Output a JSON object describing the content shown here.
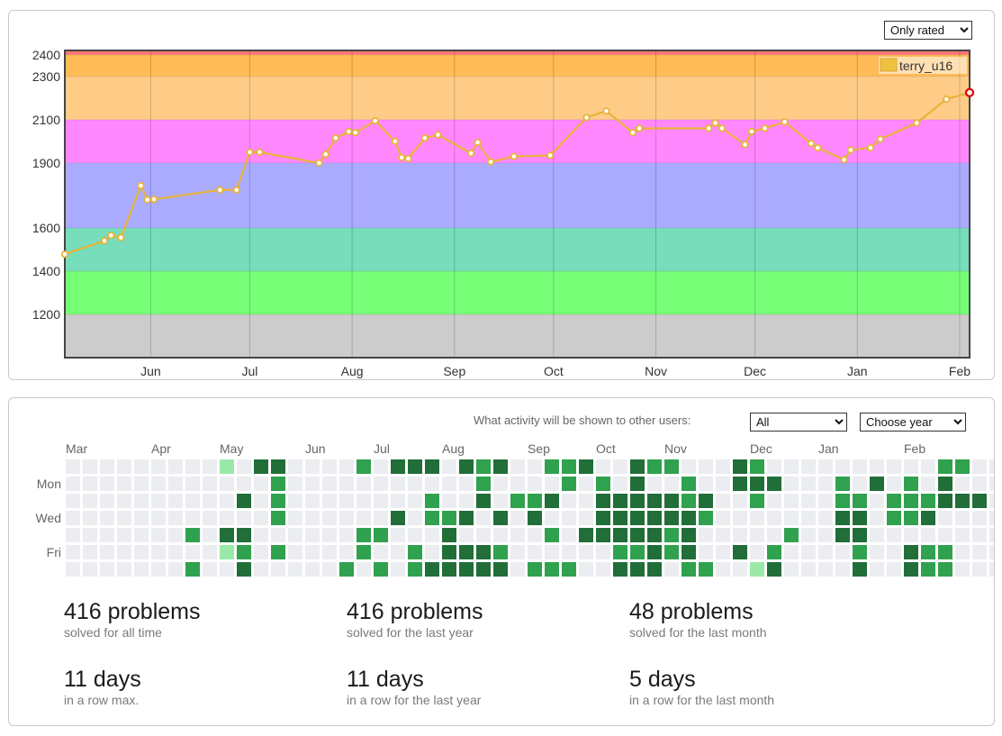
{
  "rating": {
    "filter": {
      "selected": "Only rated",
      "options": [
        "Only rated"
      ]
    },
    "chart_data": {
      "type": "line",
      "legend": {
        "name": "terry_u16",
        "color": "#f0c040",
        "position": "top-right"
      },
      "y_ticks": [
        2400,
        2300,
        2100,
        1900,
        1600,
        1400,
        1200
      ],
      "x_ticks": [
        "Jun",
        "Jul",
        "Aug",
        "Sep",
        "Oct",
        "Nov",
        "Dec",
        "Jan",
        "Feb"
      ],
      "bands": [
        {
          "from": 1000,
          "to": 1200,
          "color": "#cccccc"
        },
        {
          "from": 1200,
          "to": 1400,
          "color": "#77ff77"
        },
        {
          "from": 1400,
          "to": 1600,
          "color": "#77ddbb"
        },
        {
          "from": 1600,
          "to": 1900,
          "color": "#aaaaff"
        },
        {
          "from": 1900,
          "to": 2100,
          "color": "#ff88ff"
        },
        {
          "from": 2100,
          "to": 2300,
          "color": "#ffcc88"
        },
        {
          "from": 2300,
          "to": 2400,
          "color": "#ffbb55"
        },
        {
          "from": 2400,
          "to": 2500,
          "color": "#ff7777"
        }
      ],
      "ylim": [
        1000,
        2420
      ],
      "line_color": "#e8b33a",
      "series": [
        {
          "name": "terry_u16",
          "points": [
            {
              "date": "2020-05-06",
              "rating": 1478
            },
            {
              "date": "2020-05-18",
              "rating": 1540
            },
            {
              "date": "2020-05-20",
              "rating": 1565
            },
            {
              "date": "2020-05-23",
              "rating": 1555
            },
            {
              "date": "2020-05-29",
              "rating": 1795
            },
            {
              "date": "2020-05-31",
              "rating": 1730
            },
            {
              "date": "2020-06-02",
              "rating": 1732
            },
            {
              "date": "2020-06-22",
              "rating": 1775
            },
            {
              "date": "2020-06-27",
              "rating": 1775
            },
            {
              "date": "2020-07-01",
              "rating": 1950
            },
            {
              "date": "2020-07-04",
              "rating": 1950
            },
            {
              "date": "2020-07-22",
              "rating": 1900
            },
            {
              "date": "2020-07-24",
              "rating": 1940
            },
            {
              "date": "2020-07-27",
              "rating": 2015
            },
            {
              "date": "2020-07-31",
              "rating": 2045
            },
            {
              "date": "2020-08-02",
              "rating": 2040
            },
            {
              "date": "2020-08-08",
              "rating": 2095
            },
            {
              "date": "2020-08-14",
              "rating": 2000
            },
            {
              "date": "2020-08-16",
              "rating": 1925
            },
            {
              "date": "2020-08-18",
              "rating": 1920
            },
            {
              "date": "2020-08-23",
              "rating": 2015
            },
            {
              "date": "2020-08-27",
              "rating": 2030
            },
            {
              "date": "2020-09-06",
              "rating": 1945
            },
            {
              "date": "2020-09-08",
              "rating": 1995
            },
            {
              "date": "2020-09-12",
              "rating": 1905
            },
            {
              "date": "2020-09-19",
              "rating": 1930
            },
            {
              "date": "2020-09-30",
              "rating": 1935
            },
            {
              "date": "2020-10-11",
              "rating": 2110
            },
            {
              "date": "2020-10-17",
              "rating": 2140
            },
            {
              "date": "2020-10-25",
              "rating": 2040
            },
            {
              "date": "2020-10-27",
              "rating": 2060
            },
            {
              "date": "2020-11-17",
              "rating": 2060
            },
            {
              "date": "2020-11-19",
              "rating": 2085
            },
            {
              "date": "2020-11-21",
              "rating": 2060
            },
            {
              "date": "2020-11-28",
              "rating": 1985
            },
            {
              "date": "2020-11-30",
              "rating": 2045
            },
            {
              "date": "2020-12-04",
              "rating": 2060
            },
            {
              "date": "2020-12-10",
              "rating": 2090
            },
            {
              "date": "2020-12-18",
              "rating": 1990
            },
            {
              "date": "2020-12-20",
              "rating": 1970
            },
            {
              "date": "2020-12-28",
              "rating": 1915
            },
            {
              "date": "2020-12-30",
              "rating": 1960
            },
            {
              "date": "2021-01-05",
              "rating": 1970
            },
            {
              "date": "2021-01-08",
              "rating": 2010
            },
            {
              "date": "2021-01-19",
              "rating": 2085
            },
            {
              "date": "2021-01-28",
              "rating": 2195
            },
            {
              "date": "2021-02-04",
              "rating": 2225
            }
          ]
        }
      ]
    }
  },
  "activity": {
    "visibility_label": "What activity will be shown to other users:",
    "visibility_select": {
      "selected": "All"
    },
    "year_select": {
      "selected": "Choose year"
    },
    "month_labels": [
      "Mar",
      "Apr",
      "May",
      "Jun",
      "Jul",
      "Aug",
      "Sep",
      "Oct",
      "Nov",
      "Dec",
      "Jan",
      "Feb"
    ],
    "day_labels": [
      "Mon",
      "Wed",
      "Fri"
    ],
    "level_colors": [
      "#ebedf0",
      "#9be9a8",
      "#40c463",
      "#30a14e",
      "#216e39"
    ],
    "weeks": [
      [
        0,
        0,
        0,
        0,
        0,
        0,
        0
      ],
      [
        0,
        0,
        0,
        0,
        0,
        0,
        0
      ],
      [
        0,
        0,
        0,
        0,
        0,
        0,
        0
      ],
      [
        0,
        0,
        0,
        0,
        0,
        0,
        0
      ],
      [
        0,
        0,
        0,
        0,
        0,
        0,
        0
      ],
      [
        0,
        0,
        0,
        0,
        0,
        0,
        0
      ],
      [
        0,
        0,
        0,
        0,
        0,
        0,
        0
      ],
      [
        0,
        0,
        0,
        0,
        3,
        0,
        3
      ],
      [
        0,
        0,
        0,
        0,
        0,
        0,
        0
      ],
      [
        1,
        0,
        0,
        0,
        4,
        1,
        0
      ],
      [
        0,
        0,
        4,
        0,
        4,
        3,
        4
      ],
      [
        4,
        0,
        0,
        0,
        0,
        0,
        0
      ],
      [
        4,
        3,
        3,
        3,
        0,
        3,
        0
      ],
      [
        0,
        0,
        0,
        0,
        0,
        0,
        0
      ],
      [
        0,
        0,
        0,
        0,
        0,
        0,
        0
      ],
      [
        0,
        0,
        0,
        0,
        0,
        0,
        0
      ],
      [
        0,
        0,
        0,
        0,
        0,
        0,
        3
      ],
      [
        3,
        0,
        0,
        0,
        3,
        3,
        0
      ],
      [
        0,
        0,
        0,
        0,
        3,
        0,
        3
      ],
      [
        4,
        0,
        0,
        4,
        0,
        0,
        0
      ],
      [
        4,
        0,
        0,
        0,
        0,
        3,
        3
      ],
      [
        4,
        0,
        3,
        3,
        0,
        0,
        4
      ],
      [
        0,
        0,
        0,
        3,
        4,
        4,
        4
      ],
      [
        4,
        0,
        0,
        4,
        0,
        4,
        4
      ],
      [
        3,
        3,
        4,
        0,
        0,
        4,
        4
      ],
      [
        4,
        0,
        0,
        4,
        0,
        3,
        4
      ],
      [
        0,
        0,
        3,
        0,
        0,
        0,
        0
      ],
      [
        0,
        0,
        3,
        4,
        0,
        0,
        3
      ],
      [
        3,
        0,
        4,
        0,
        3,
        0,
        3
      ],
      [
        3,
        3,
        0,
        0,
        0,
        0,
        3
      ],
      [
        4,
        0,
        0,
        0,
        4,
        0,
        0
      ],
      [
        0,
        3,
        4,
        4,
        4,
        0,
        0
      ],
      [
        0,
        0,
        4,
        4,
        4,
        3,
        4
      ],
      [
        4,
        4,
        4,
        4,
        4,
        3,
        4
      ],
      [
        3,
        0,
        4,
        4,
        4,
        4,
        4
      ],
      [
        3,
        0,
        4,
        4,
        3,
        3,
        0
      ],
      [
        0,
        3,
        3,
        4,
        4,
        4,
        3
      ],
      [
        0,
        0,
        4,
        3,
        0,
        0,
        3
      ],
      [
        0,
        0,
        0,
        0,
        0,
        0,
        0
      ],
      [
        4,
        4,
        0,
        0,
        0,
        4,
        0
      ],
      [
        3,
        4,
        3,
        0,
        0,
        0,
        1
      ],
      [
        0,
        4,
        0,
        0,
        0,
        3,
        4
      ],
      [
        0,
        0,
        0,
        0,
        3,
        0,
        0
      ],
      [
        0,
        0,
        0,
        0,
        0,
        0,
        0
      ],
      [
        0,
        0,
        0,
        0,
        0,
        0,
        0
      ],
      [
        0,
        3,
        3,
        4,
        4,
        0,
        0
      ],
      [
        0,
        0,
        3,
        4,
        4,
        3,
        4
      ],
      [
        0,
        4,
        0,
        0,
        0,
        0,
        0
      ],
      [
        0,
        0,
        3,
        3,
        0,
        0,
        0
      ],
      [
        0,
        3,
        3,
        3,
        0,
        4,
        4
      ],
      [
        0,
        0,
        3,
        4,
        0,
        3,
        3
      ],
      [
        3,
        4,
        4,
        0,
        0,
        3,
        3
      ],
      [
        3,
        0,
        4,
        0,
        0,
        0,
        0
      ],
      [
        0,
        0,
        4,
        0,
        0,
        0,
        0
      ],
      [
        0,
        0,
        0,
        0,
        0,
        0,
        0
      ]
    ],
    "stats": [
      {
        "value": "416 problems",
        "label": "solved for all time"
      },
      {
        "value": "416 problems",
        "label": "solved for the last year"
      },
      {
        "value": "48 problems",
        "label": "solved for the last month"
      },
      {
        "value": "11 days",
        "label": "in a row max."
      },
      {
        "value": "11 days",
        "label": "in a row for the last year"
      },
      {
        "value": "5 days",
        "label": "in a row for the last month"
      }
    ]
  }
}
